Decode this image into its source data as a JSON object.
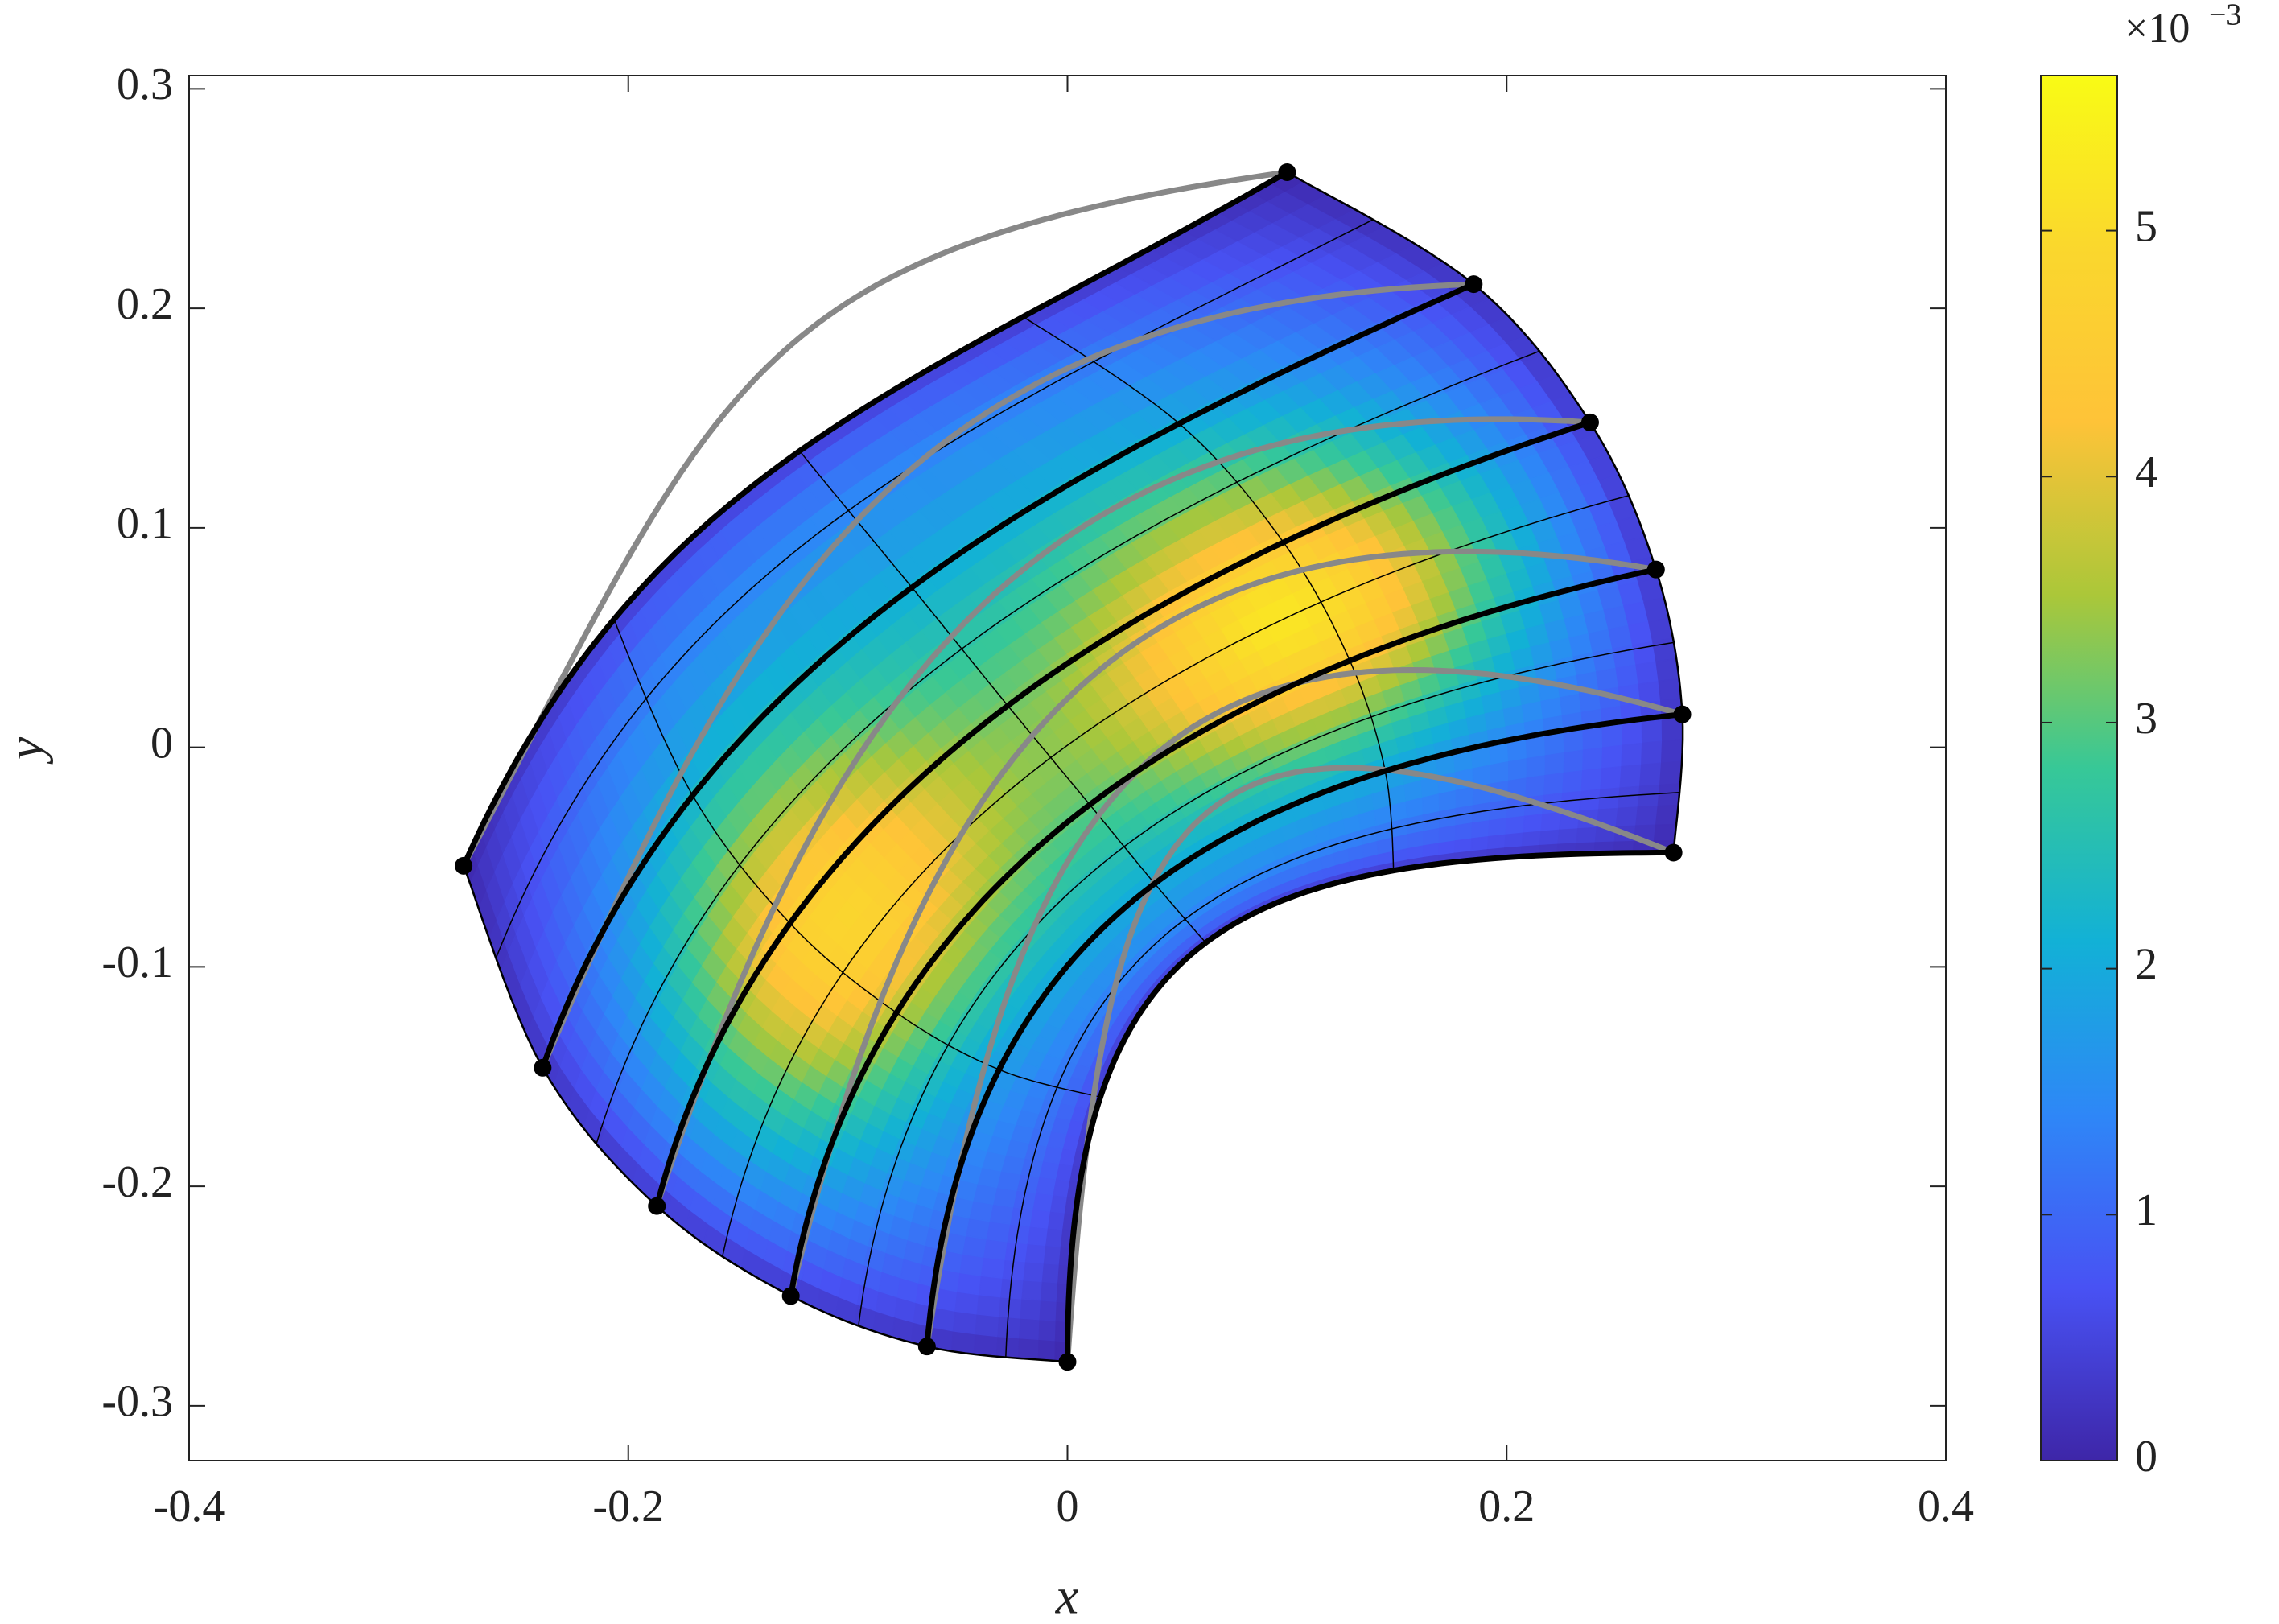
{
  "chart_data": {
    "type": "mesh",
    "xlabel": "x",
    "ylabel": "y",
    "xlim": [
      -0.4,
      0.4
    ],
    "ylim": [
      -0.325,
      0.306
    ],
    "xticks": [
      -0.4,
      -0.2,
      0,
      0.2,
      0.4
    ],
    "yticks": [
      -0.3,
      -0.2,
      -0.1,
      0,
      0.1,
      0.2,
      0.3
    ],
    "points": {
      "x": [
        -0.275,
        -0.239,
        -0.187,
        -0.126,
        -0.064,
        0,
        0.1,
        0.185,
        0.238,
        0.268,
        0.28,
        0.276
      ],
      "y": [
        -0.054,
        -0.146,
        -0.209,
        -0.25,
        -0.273,
        -0.28,
        0.262,
        0.211,
        0.148,
        0.081,
        0.015,
        -0.048
      ],
      "color": "#000000"
    },
    "colorbar": {
      "clim": [
        0,
        5.63
      ],
      "ticks": [
        0,
        1,
        2,
        3,
        4,
        5
      ],
      "multiplier_base": "×10",
      "multiplier_exponent": "−3"
    }
  }
}
